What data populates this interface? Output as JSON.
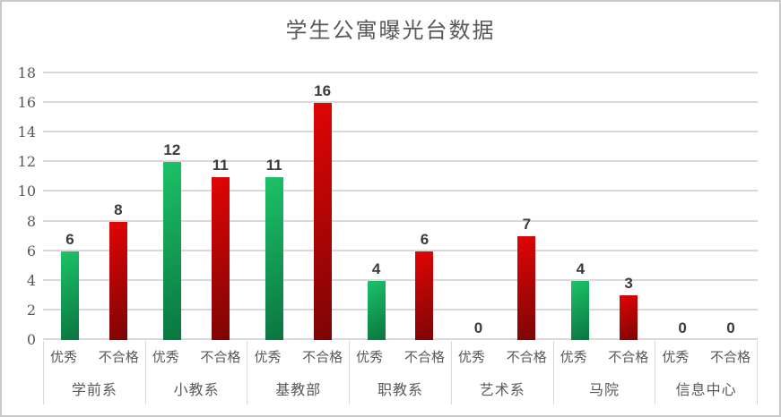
{
  "chart_data": {
    "type": "bar",
    "title": "学生公寓曝光台数据",
    "categories": [
      "学前系",
      "小教系",
      "基教部",
      "职教系",
      "艺术系",
      "马院",
      "信息中心"
    ],
    "series": [
      {
        "name": "优秀",
        "values": [
          6,
          12,
          11,
          4,
          0,
          4,
          0
        ],
        "color_top": "#1cc268",
        "color_bottom": "#0a7540"
      },
      {
        "name": "不合格",
        "values": [
          8,
          11,
          16,
          6,
          7,
          3,
          0
        ],
        "color_top": "#e10505",
        "color_bottom": "#7c0505"
      }
    ],
    "ylim": [
      0,
      18
    ],
    "y_ticks": [
      0,
      2,
      4,
      6,
      8,
      10,
      12,
      14,
      16,
      18
    ],
    "grid": true,
    "legend": "none",
    "value_labels": true
  },
  "colors": {
    "title_text": "#595959",
    "axis_text": "#595959",
    "value_label_text": "#3b3b3b",
    "gridline": "#d9d9d9",
    "border": "#c9c9c9",
    "background": "#ffffff"
  }
}
